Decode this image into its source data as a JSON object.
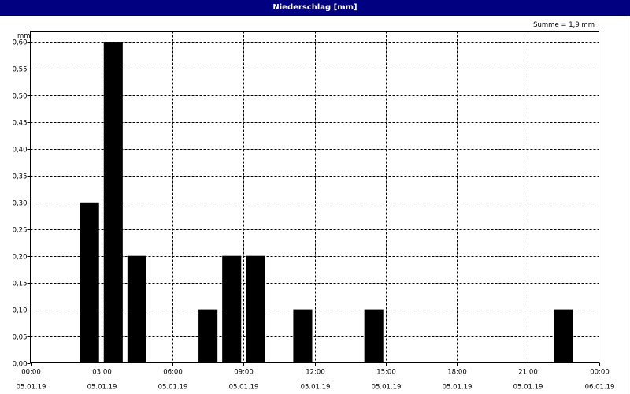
{
  "window": {
    "title": "Niederschlag [mm]"
  },
  "chart_data": {
    "type": "bar",
    "title": "Niederschlag [mm]",
    "ylabel": "mm",
    "xlabel": "",
    "sum_label": "Summe = 1,9 mm",
    "ylim": [
      0,
      0.62
    ],
    "xlim_hours": [
      0,
      24
    ],
    "y_ticks": [
      "0,00",
      "0,05",
      "0,10",
      "0,15",
      "0,20",
      "0,25",
      "0,30",
      "0,35",
      "0,40",
      "0,45",
      "0,50",
      "0,55",
      "0,60"
    ],
    "x_ticks": [
      {
        "time": "00:00",
        "date": "05.01.19"
      },
      {
        "time": "03:00",
        "date": "05.01.19"
      },
      {
        "time": "06:00",
        "date": "05.01.19"
      },
      {
        "time": "09:00",
        "date": "05.01.19"
      },
      {
        "time": "12:00",
        "date": "05.01.19"
      },
      {
        "time": "15:00",
        "date": "05.01.19"
      },
      {
        "time": "18:00",
        "date": "05.01.19"
      },
      {
        "time": "21:00",
        "date": "05.01.19"
      },
      {
        "time": "00:00",
        "date": "06.01.19"
      }
    ],
    "bars": [
      {
        "start_hour": 2,
        "end_hour": 3,
        "value": 0.3
      },
      {
        "start_hour": 3,
        "end_hour": 4,
        "value": 0.6
      },
      {
        "start_hour": 4,
        "end_hour": 5,
        "value": 0.2
      },
      {
        "start_hour": 7,
        "end_hour": 8,
        "value": 0.1
      },
      {
        "start_hour": 8,
        "end_hour": 9,
        "value": 0.2
      },
      {
        "start_hour": 9,
        "end_hour": 10,
        "value": 0.2
      },
      {
        "start_hour": 11,
        "end_hour": 12,
        "value": 0.1
      },
      {
        "start_hour": 14,
        "end_hour": 15,
        "value": 0.1
      },
      {
        "start_hour": 22,
        "end_hour": 23,
        "value": 0.1
      }
    ],
    "grid": true,
    "bar_color": "#000000",
    "title_bar_color": "#000080"
  }
}
